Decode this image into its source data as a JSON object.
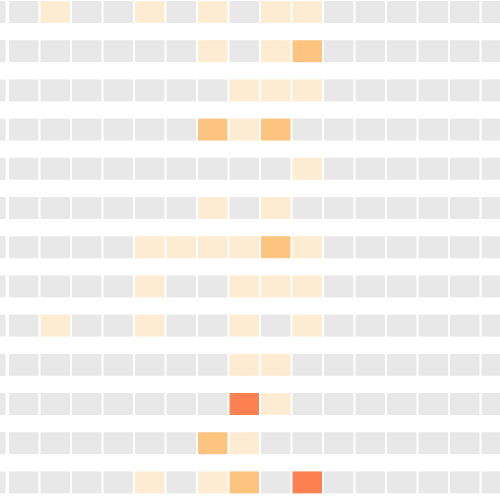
{
  "chart_data": {
    "type": "heatmap",
    "title": "",
    "xlabel": "",
    "ylabel": "",
    "legend": "none",
    "grid": false,
    "color_scale": {
      "0": "#e8e8e8",
      "1": "#fdebd2",
      "2": "#fcc47f",
      "3": "#fd8050"
    },
    "rows": [
      [
        0,
        1,
        0,
        0,
        1,
        0,
        1,
        0,
        1,
        1,
        0,
        0,
        0,
        0,
        0,
        0
      ],
      [
        0,
        0,
        0,
        0,
        0,
        0,
        1,
        0,
        1,
        2,
        0,
        0,
        0,
        0,
        0,
        0
      ],
      [
        0,
        0,
        0,
        0,
        0,
        0,
        0,
        1,
        1,
        1,
        0,
        0,
        0,
        0,
        0,
        0
      ],
      [
        0,
        0,
        0,
        0,
        0,
        0,
        2,
        1,
        2,
        0,
        0,
        0,
        0,
        0,
        0,
        0
      ],
      [
        0,
        0,
        0,
        0,
        0,
        0,
        0,
        0,
        0,
        1,
        0,
        0,
        0,
        0,
        0,
        0
      ],
      [
        0,
        0,
        0,
        0,
        0,
        0,
        1,
        0,
        1,
        0,
        0,
        0,
        0,
        0,
        0,
        0
      ],
      [
        0,
        0,
        0,
        0,
        1,
        1,
        1,
        1,
        2,
        1,
        0,
        0,
        0,
        0,
        0,
        0
      ],
      [
        0,
        0,
        0,
        0,
        1,
        0,
        0,
        1,
        1,
        1,
        0,
        0,
        0,
        0,
        0,
        0
      ],
      [
        0,
        1,
        0,
        0,
        1,
        0,
        0,
        1,
        0,
        1,
        0,
        0,
        0,
        0,
        0,
        0
      ],
      [
        0,
        0,
        0,
        0,
        0,
        0,
        0,
        1,
        1,
        0,
        0,
        0,
        0,
        0,
        0,
        0
      ],
      [
        0,
        0,
        0,
        0,
        0,
        0,
        0,
        3,
        1,
        0,
        0,
        0,
        0,
        0,
        0,
        0
      ],
      [
        0,
        0,
        0,
        0,
        0,
        0,
        2,
        1,
        0,
        0,
        0,
        0,
        0,
        0,
        0,
        0
      ],
      [
        0,
        0,
        0,
        0,
        1,
        0,
        1,
        2,
        0,
        3,
        0,
        0,
        0,
        0,
        0,
        0
      ]
    ]
  }
}
